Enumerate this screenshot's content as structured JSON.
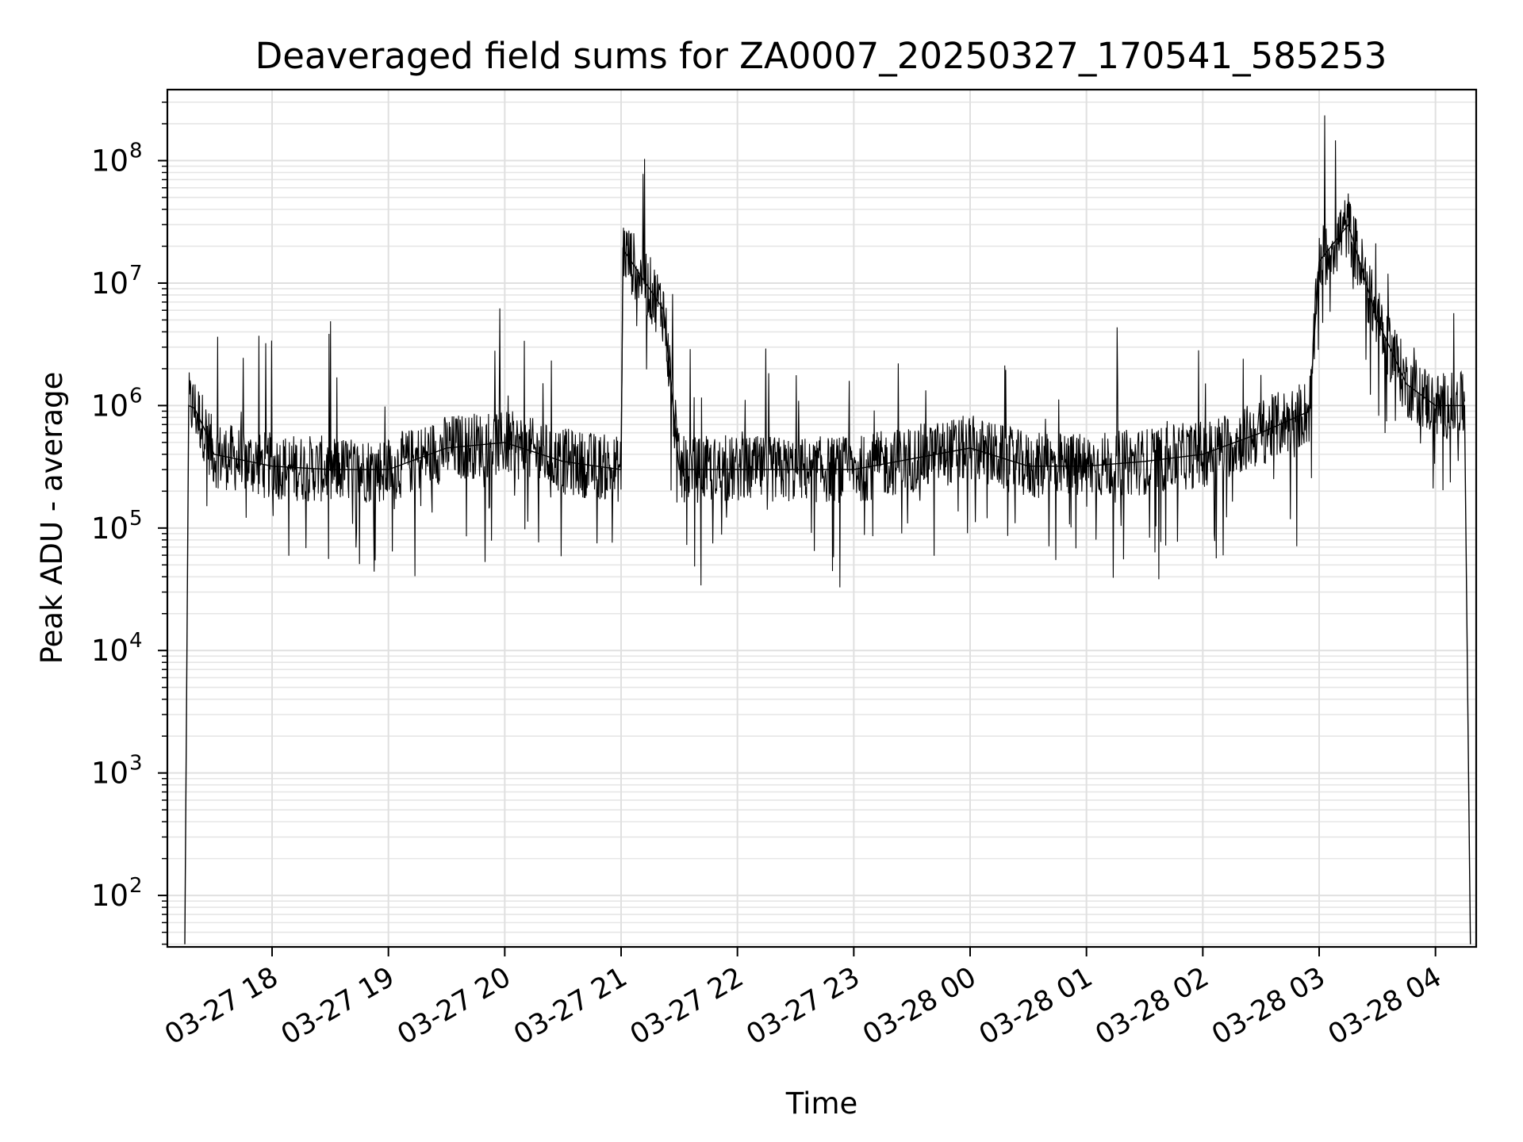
{
  "chart_data": {
    "type": "line",
    "title": "Deaveraged field sums for ZA0007_20250327_170541_585253",
    "xlabel": "Time",
    "ylabel": "Peak ADU - average",
    "yscale": "log",
    "ylim": [
      38,
      380000000
    ],
    "xlim": [
      "2025-03-27 17:06",
      "2025-03-28 04:21"
    ],
    "grid": true,
    "line_color": "#000000",
    "x_ticks": [
      {
        "t": "2025-03-27 18:00",
        "label": "03-27 18"
      },
      {
        "t": "2025-03-27 19:00",
        "label": "03-27 19"
      },
      {
        "t": "2025-03-27 20:00",
        "label": "03-27 20"
      },
      {
        "t": "2025-03-27 21:00",
        "label": "03-27 21"
      },
      {
        "t": "2025-03-27 22:00",
        "label": "03-27 22"
      },
      {
        "t": "2025-03-27 23:00",
        "label": "03-27 23"
      },
      {
        "t": "2025-03-28 00:00",
        "label": "03-28 00"
      },
      {
        "t": "2025-03-28 01:00",
        "label": "03-28 01"
      },
      {
        "t": "2025-03-28 02:00",
        "label": "03-28 02"
      },
      {
        "t": "2025-03-28 03:00",
        "label": "03-28 03"
      },
      {
        "t": "2025-03-28 04:00",
        "label": "03-28 04"
      }
    ],
    "y_ticks": [
      {
        "value": 100,
        "base": "10",
        "exp": "2"
      },
      {
        "value": 1000,
        "base": "10",
        "exp": "3"
      },
      {
        "value": 10000,
        "base": "10",
        "exp": "4"
      },
      {
        "value": 100000,
        "base": "10",
        "exp": "5"
      },
      {
        "value": 1000000,
        "base": "10",
        "exp": "6"
      },
      {
        "value": 10000000,
        "base": "10",
        "exp": "7"
      },
      {
        "value": 100000000,
        "base": "10",
        "exp": "8"
      }
    ],
    "series": [
      {
        "values": [
          [
            "2025-03-27 17:15",
            40
          ],
          [
            "2025-03-27 17:17",
            1000000
          ],
          [
            "2025-03-27 17:20",
            950000
          ],
          [
            "2025-03-27 17:25",
            650000
          ],
          [
            "2025-03-27 17:30",
            400000
          ],
          [
            "2025-03-27 18:00",
            320000
          ],
          [
            "2025-03-27 18:30",
            300000
          ],
          [
            "2025-03-27 19:00",
            300000
          ],
          [
            "2025-03-27 19:30",
            450000
          ],
          [
            "2025-03-27 20:00",
            500000
          ],
          [
            "2025-03-27 20:30",
            350000
          ],
          [
            "2025-03-27 21:00",
            300000
          ],
          [
            "2025-03-27 21:01",
            19000000
          ],
          [
            "2025-03-27 21:22",
            6000000
          ],
          [
            "2025-03-27 21:30",
            300000
          ],
          [
            "2025-03-27 22:00",
            300000
          ],
          [
            "2025-03-27 23:00",
            300000
          ],
          [
            "2025-03-28 00:00",
            450000
          ],
          [
            "2025-03-28 00:30",
            320000
          ],
          [
            "2025-03-28 01:00",
            320000
          ],
          [
            "2025-03-28 01:30",
            350000
          ],
          [
            "2025-03-28 02:00",
            400000
          ],
          [
            "2025-03-28 02:30",
            600000
          ],
          [
            "2025-03-28 02:55",
            900000
          ],
          [
            "2025-03-28 03:00",
            15000000
          ],
          [
            "2025-03-28 03:15",
            30000000
          ],
          [
            "2025-03-28 03:30",
            5000000
          ],
          [
            "2025-03-28 03:45",
            1500000
          ],
          [
            "2025-03-28 04:00",
            1000000
          ],
          [
            "2025-03-28 04:15",
            1000000
          ],
          [
            "2025-03-28 04:18",
            40
          ]
        ]
      }
    ]
  }
}
